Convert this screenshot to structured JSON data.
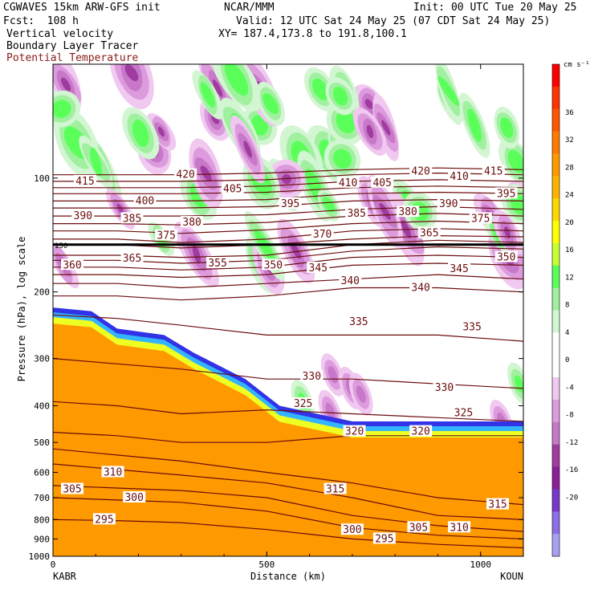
{
  "header": {
    "model": "CGWAVES 15km ARW-GFS init",
    "source": "NCAR/MMM",
    "init": "Init: 00 UTC Tue 20 May 25",
    "fcst": "Fcst:  108 h",
    "valid": "Valid: 12 UTC Sat 24 May 25 (07 CDT Sat 24 May 25)",
    "field1": "Vertical velocity",
    "xy": "XY= 187.4,173.8 to 191.8,100.1",
    "field2": "Boundary Layer Tracer",
    "field3": "Potential Temperature",
    "field3_color": "#8b1a1a"
  },
  "chart_data": {
    "type": "heatmap",
    "xlabel": "Distance (km)",
    "ylabel": "Pressure (hPa), log scale",
    "x_ticks": [
      0,
      500,
      1000
    ],
    "x_range": [
      0,
      1100
    ],
    "y_ticks": [
      100,
      200,
      300,
      400,
      500,
      600,
      700,
      800,
      900,
      1000
    ],
    "y_range": [
      50,
      1000
    ],
    "y_scale": "log",
    "left_station": "KABR",
    "right_station": "KOUN",
    "tropopause_label": "150",
    "colorbar": {
      "unit": "cm s⁻¹",
      "labels": [
        36,
        32,
        28,
        24,
        20,
        16,
        12,
        8,
        4,
        0,
        -4,
        -8,
        -12,
        -16,
        -20
      ],
      "colors": [
        "#ff0000",
        "#ff3300",
        "#ff5500",
        "#ff7a00",
        "#ff9900",
        "#ffb300",
        "#ffd700",
        "#ffff00",
        "#c8ff32",
        "#5aff5a",
        "#a0f0a0",
        "#d2f5d2",
        "#ffffff",
        "#ffffff",
        "#f0c8f0",
        "#dc9bdc",
        "#c878c8",
        "#a03ca0",
        "#8c1e96",
        "#7838c8",
        "#8c6ee6",
        "#a8a0f0"
      ]
    },
    "theta_contours": [
      {
        "theta": 295,
        "x": [
          0,
          150,
          300,
          500,
          700,
          900,
          1100
        ],
        "p": [
          800,
          805,
          815,
          850,
          900,
          930,
          950
        ]
      },
      {
        "theta": 300,
        "x": [
          0,
          150,
          300,
          500,
          700,
          900,
          1100
        ],
        "p": [
          700,
          710,
          720,
          760,
          840,
          880,
          900
        ]
      },
      {
        "theta": 305,
        "x": [
          0,
          150,
          300,
          500,
          700,
          900,
          1100
        ],
        "p": [
          650,
          660,
          670,
          700,
          780,
          830,
          860
        ]
      },
      {
        "theta": 310,
        "x": [
          0,
          150,
          300,
          500,
          700,
          900,
          1100
        ],
        "p": [
          570,
          590,
          610,
          640,
          700,
          780,
          800
        ]
      },
      {
        "theta": 315,
        "x": [
          0,
          150,
          300,
          500,
          700,
          900,
          1100
        ],
        "p": [
          520,
          540,
          560,
          600,
          640,
          700,
          730
        ]
      },
      {
        "theta": 320,
        "x": [
          0,
          150,
          300,
          500,
          700,
          900,
          1100
        ],
        "p": [
          470,
          480,
          500,
          500,
          480,
          480,
          480
        ]
      },
      {
        "theta": 325,
        "x": [
          0,
          150,
          300,
          500,
          700,
          900,
          1100
        ],
        "p": [
          390,
          400,
          420,
          410,
          420,
          430,
          440
        ]
      },
      {
        "theta": 330,
        "x": [
          0,
          150,
          300,
          500,
          700,
          900,
          1100
        ],
        "p": [
          300,
          310,
          320,
          340,
          340,
          350,
          360
        ]
      },
      {
        "theta": 335,
        "x": [
          0,
          150,
          300,
          500,
          700,
          900,
          1100
        ],
        "p": [
          230,
          235,
          245,
          260,
          260,
          260,
          270
        ]
      },
      {
        "theta": 340,
        "x": [
          0,
          150,
          300,
          500,
          700,
          900,
          1100
        ],
        "p": [
          205,
          205,
          210,
          205,
          195,
          195,
          200
        ]
      },
      {
        "theta": 345,
        "x": [
          0,
          150,
          300,
          500,
          700,
          900,
          1100
        ],
        "p": [
          190,
          190,
          195,
          190,
          185,
          180,
          185
        ]
      },
      {
        "theta": 350,
        "x": [
          0,
          150,
          300,
          500,
          700,
          900,
          1100
        ],
        "p": [
          180,
          180,
          183,
          180,
          170,
          168,
          170
        ]
      },
      {
        "theta": 355,
        "x": [
          0,
          150,
          300,
          500,
          700,
          900,
          1100
        ],
        "p": [
          172,
          172,
          175,
          172,
          162,
          160,
          162
        ]
      },
      {
        "theta": 360,
        "x": [
          0,
          150,
          300,
          500,
          700,
          900,
          1100
        ],
        "p": [
          165,
          165,
          168,
          165,
          156,
          152,
          154
        ]
      },
      {
        "theta": 365,
        "x": [
          0,
          150,
          300,
          500,
          700,
          900,
          1100
        ],
        "p": [
          160,
          160,
          162,
          160,
          150,
          146,
          148
        ]
      },
      {
        "theta": 370,
        "x": [
          0,
          150,
          300,
          500,
          700,
          900,
          1100
        ],
        "p": [
          150,
          150,
          153,
          150,
          145,
          142,
          143
        ]
      },
      {
        "theta": 375,
        "x": [
          0,
          150,
          300,
          500,
          700,
          900,
          1100
        ],
        "p": [
          145,
          145,
          148,
          145,
          138,
          136,
          138
        ]
      },
      {
        "theta": 380,
        "x": [
          0,
          150,
          300,
          500,
          700,
          900,
          1100
        ],
        "p": [
          138,
          138,
          140,
          137,
          132,
          130,
          132
        ]
      },
      {
        "theta": 385,
        "x": [
          0,
          150,
          300,
          500,
          700,
          900,
          1100
        ],
        "p": [
          132,
          132,
          133,
          131,
          126,
          124,
          126
        ]
      },
      {
        "theta": 390,
        "x": [
          0,
          150,
          300,
          500,
          700,
          900,
          1100
        ],
        "p": [
          126,
          126,
          126,
          125,
          121,
          119,
          121
        ]
      },
      {
        "theta": 395,
        "x": [
          0,
          150,
          300,
          500,
          700,
          900,
          1100
        ],
        "p": [
          120,
          120,
          120,
          119,
          115,
          114,
          115
        ]
      },
      {
        "theta": 400,
        "x": [
          0,
          150,
          300,
          500,
          700,
          900,
          1100
        ],
        "p": [
          115,
          115,
          115,
          114,
          110,
          109,
          110
        ]
      },
      {
        "theta": 405,
        "x": [
          0,
          150,
          300,
          500,
          700,
          900,
          1100
        ],
        "p": [
          110,
          110,
          110,
          109,
          106,
          105,
          106
        ]
      },
      {
        "theta": 410,
        "x": [
          0,
          150,
          300,
          500,
          700,
          900,
          1100
        ],
        "p": [
          106,
          106,
          106,
          105,
          102,
          101,
          102
        ]
      },
      {
        "theta": 415,
        "x": [
          0,
          150,
          300,
          500,
          700,
          900,
          1100
        ],
        "p": [
          102,
          102,
          102,
          101,
          98,
          97,
          98
        ]
      },
      {
        "theta": 420,
        "x": [
          0,
          150,
          300,
          500,
          700,
          900,
          1100
        ],
        "p": [
          98,
          98,
          98,
          97,
          95,
          94,
          95
        ]
      }
    ],
    "theta_labels": [
      {
        "text": "415",
        "x": 75,
        "p": 102
      },
      {
        "text": "420",
        "x": 310,
        "p": 98
      },
      {
        "text": "405",
        "x": 420,
        "p": 107
      },
      {
        "text": "410",
        "x": 690,
        "p": 103
      },
      {
        "text": "405",
        "x": 770,
        "p": 103
      },
      {
        "text": "420",
        "x": 860,
        "p": 96
      },
      {
        "text": "410",
        "x": 950,
        "p": 99
      },
      {
        "text": "415",
        "x": 1030,
        "p": 96
      },
      {
        "text": "395",
        "x": 1060,
        "p": 110
      },
      {
        "text": "400",
        "x": 215,
        "p": 115
      },
      {
        "text": "390",
        "x": 70,
        "p": 126
      },
      {
        "text": "385",
        "x": 185,
        "p": 128
      },
      {
        "text": "380",
        "x": 325,
        "p": 131
      },
      {
        "text": "395",
        "x": 555,
        "p": 117
      },
      {
        "text": "385",
        "x": 710,
        "p": 124
      },
      {
        "text": "380",
        "x": 830,
        "p": 123
      },
      {
        "text": "390",
        "x": 925,
        "p": 117
      },
      {
        "text": "375",
        "x": 1000,
        "p": 128
      },
      {
        "text": "375",
        "x": 265,
        "p": 142
      },
      {
        "text": "370",
        "x": 630,
        "p": 141
      },
      {
        "text": "365",
        "x": 880,
        "p": 140
      },
      {
        "text": "360",
        "x": 45,
        "p": 170
      },
      {
        "text": "365",
        "x": 185,
        "p": 163
      },
      {
        "text": "355",
        "x": 385,
        "p": 168
      },
      {
        "text": "350",
        "x": 515,
        "p": 170
      },
      {
        "text": "345",
        "x": 620,
        "p": 173
      },
      {
        "text": "340",
        "x": 695,
        "p": 187
      },
      {
        "text": "340",
        "x": 860,
        "p": 195
      },
      {
        "text": "345",
        "x": 950,
        "p": 174
      },
      {
        "text": "350",
        "x": 1060,
        "p": 162
      },
      {
        "text": "335",
        "x": 715,
        "p": 240
      },
      {
        "text": "335",
        "x": 980,
        "p": 248
      },
      {
        "text": "330",
        "x": 605,
        "p": 335
      },
      {
        "text": "330",
        "x": 915,
        "p": 358
      },
      {
        "text": "325",
        "x": 585,
        "p": 395
      },
      {
        "text": "325",
        "x": 960,
        "p": 418
      },
      {
        "text": "320",
        "x": 705,
        "p": 468
      },
      {
        "text": "320",
        "x": 860,
        "p": 468
      },
      {
        "text": "310",
        "x": 140,
        "p": 600
      },
      {
        "text": "305",
        "x": 45,
        "p": 665
      },
      {
        "text": "300",
        "x": 190,
        "p": 700
      },
      {
        "text": "315",
        "x": 660,
        "p": 665
      },
      {
        "text": "315",
        "x": 1040,
        "p": 730
      },
      {
        "text": "295",
        "x": 120,
        "p": 800
      },
      {
        "text": "300",
        "x": 700,
        "p": 852
      },
      {
        "text": "305",
        "x": 855,
        "p": 840
      },
      {
        "text": "310",
        "x": 950,
        "p": 840
      },
      {
        "text": "295",
        "x": 775,
        "p": 900
      }
    ],
    "grid": false
  }
}
